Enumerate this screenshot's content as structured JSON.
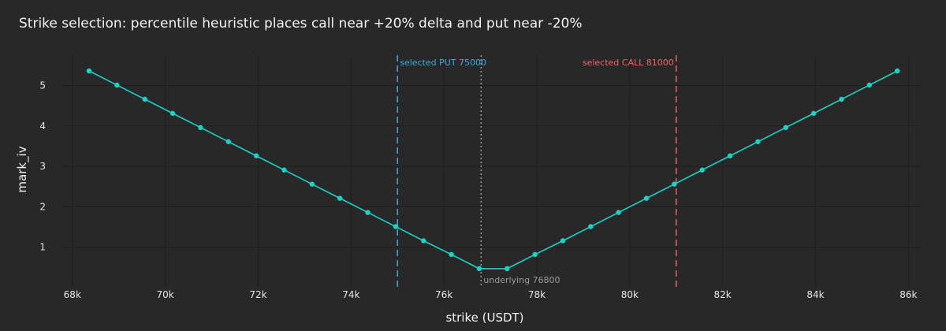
{
  "chart_data": {
    "type": "line",
    "title": "Strike selection: percentile heuristic places call near +20% delta and put near -20%",
    "xlabel": "strike (USDT)",
    "ylabel": "mark_iv",
    "xlim": [
      67800,
      86300
    ],
    "ylim": [
      0,
      5.75
    ],
    "x_ticks": [
      68000,
      70000,
      72000,
      74000,
      76000,
      78000,
      80000,
      82000,
      84000,
      86000
    ],
    "x_tick_labels": [
      "68k",
      "70k",
      "72k",
      "74k",
      "76k",
      "78k",
      "80k",
      "82k",
      "84k",
      "86k"
    ],
    "y_ticks": [
      1,
      2,
      3,
      4,
      5
    ],
    "y_tick_labels": [
      "1",
      "2",
      "3",
      "4",
      "5"
    ],
    "grid": true,
    "series": [
      {
        "color": "#19d3c5",
        "x": [
          68360,
          68960,
          69560,
          70160,
          70760,
          71360,
          71960,
          72560,
          73160,
          73760,
          74360,
          74960,
          75560,
          76160,
          76760,
          77360,
          77960,
          78560,
          79160,
          79760,
          80360,
          80960,
          81560,
          82160,
          82760,
          83360,
          83960,
          84560,
          85160,
          85760
        ],
        "values": [
          5.36,
          5.01,
          4.66,
          4.31,
          3.96,
          3.61,
          3.26,
          2.91,
          2.56,
          2.21,
          1.86,
          1.51,
          1.16,
          0.82,
          0.47,
          0.47,
          0.82,
          1.16,
          1.51,
          1.86,
          2.21,
          2.56,
          2.91,
          3.26,
          3.61,
          3.96,
          4.31,
          4.66,
          5.01,
          5.36
        ]
      }
    ],
    "vlines": [
      {
        "x": 75000,
        "label": "selected PUT 75000",
        "color": "#3fa9d9",
        "dash": "dash",
        "label_side": "right",
        "label_pos": "top"
      },
      {
        "x": 76800,
        "label": "underlying 76800",
        "color": "#9a9a9a",
        "dash": "dot",
        "label_side": "right",
        "label_pos": "bottom"
      },
      {
        "x": 81000,
        "label": "selected CALL 81000",
        "color": "#f06363",
        "dash": "dash",
        "label_side": "left",
        "label_pos": "top"
      }
    ]
  }
}
